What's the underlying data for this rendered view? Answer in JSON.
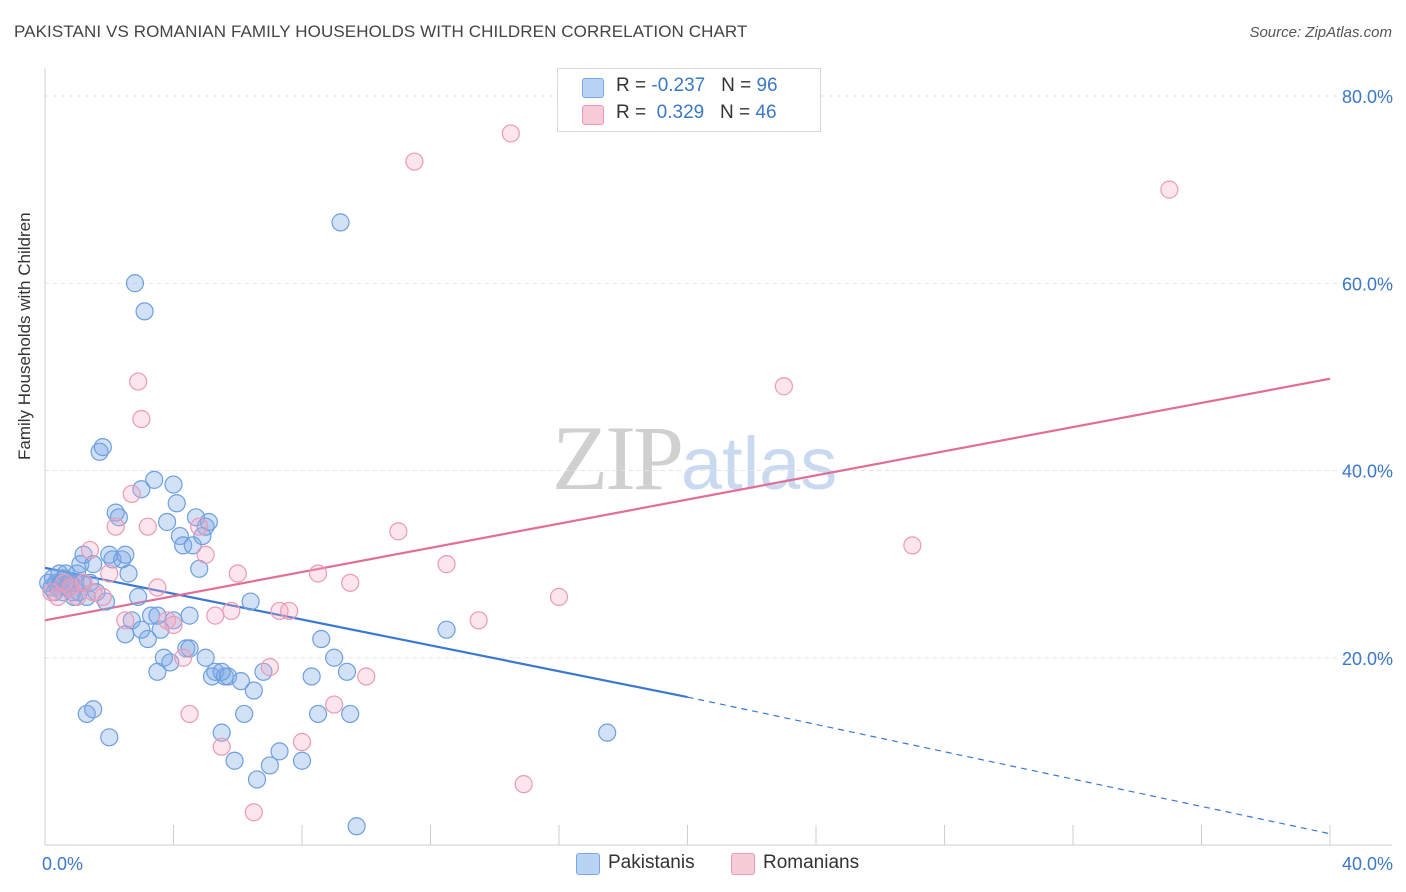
{
  "title": "PAKISTANI VS ROMANIAN FAMILY HOUSEHOLDS WITH CHILDREN CORRELATION CHART",
  "source": "Source: ZipAtlas.com",
  "watermark": {
    "zip": "ZIP",
    "atlas": "atlas"
  },
  "legend_stats": [
    {
      "r_label": "R = ",
      "r_value": "-0.237",
      "n_label": "N = ",
      "n_value": "96"
    },
    {
      "r_label": "R = ",
      "r_value": " 0.329",
      "n_label": "N = ",
      "n_value": "46"
    }
  ],
  "chart_data": {
    "type": "scatter",
    "title": "PAKISTANI VS ROMANIAN FAMILY HOUSEHOLDS WITH CHILDREN CORRELATION CHART",
    "xlabel": "",
    "ylabel": "Family Households with Children",
    "xlim": [
      0,
      40
    ],
    "ylim": [
      0,
      80
    ],
    "x_tick_labels": [
      "0.0%",
      "40.0%"
    ],
    "y_ticks": [
      20,
      40,
      60,
      80
    ],
    "y_tick_labels": [
      "20.0%",
      "40.0%",
      "60.0%",
      "80.0%"
    ],
    "grid": true,
    "legend_position": "bottom",
    "colors": {
      "pakistanis": "#5b95db",
      "romanians": "#e98aaa",
      "pak_line": "#3a78d2",
      "rom_line": "#e26d97",
      "tick_label": "#3b78c6"
    },
    "series": [
      {
        "name": "Pakistanis",
        "x": [
          0.1,
          0.2,
          0.25,
          0.3,
          0.35,
          0.4,
          0.45,
          0.5,
          0.55,
          0.6,
          0.65,
          0.7,
          0.75,
          0.8,
          0.85,
          0.9,
          0.95,
          1.0,
          1.05,
          1.1,
          1.15,
          1.2,
          1.3,
          1.4,
          1.5,
          1.6,
          1.7,
          1.8,
          1.9,
          2.0,
          2.1,
          2.2,
          2.3,
          2.4,
          2.5,
          2.6,
          2.7,
          2.8,
          2.9,
          3.0,
          3.1,
          3.2,
          3.3,
          3.4,
          3.5,
          3.6,
          3.7,
          3.8,
          3.9,
          4.0,
          4.1,
          4.2,
          4.3,
          4.4,
          4.5,
          4.6,
          4.7,
          4.8,
          4.9,
          5.0,
          5.1,
          5.2,
          5.3,
          5.5,
          5.6,
          5.7,
          5.9,
          6.1,
          6.2,
          6.4,
          6.6,
          6.8,
          7.0,
          7.3,
          8.0,
          8.3,
          8.5,
          8.6,
          9.0,
          9.2,
          9.4,
          9.5,
          9.7,
          12.5,
          17.5,
          1.3,
          1.5,
          2.0,
          2.5,
          3.0,
          3.5,
          4.0,
          4.5,
          5.0,
          5.5,
          6.5
        ],
        "y": [
          28,
          27.5,
          28.5,
          27,
          28,
          27.5,
          29,
          28,
          27,
          28.5,
          29,
          27.5,
          28,
          28,
          27,
          26.5,
          28,
          29,
          27,
          30,
          28,
          31,
          26.5,
          28,
          30,
          27,
          42,
          42.5,
          26,
          31,
          30.5,
          35.5,
          35,
          30.5,
          31,
          29,
          24,
          60,
          26.5,
          38,
          57,
          22,
          24.5,
          39,
          18.5,
          23,
          20,
          34.5,
          19.5,
          38.5,
          36.5,
          33,
          32,
          21,
          24.5,
          32,
          35,
          29.5,
          33,
          34,
          34.5,
          18,
          18.5,
          12,
          18,
          18,
          9,
          17.5,
          14,
          26,
          7,
          18.5,
          8.5,
          10,
          9,
          18,
          14,
          22,
          20,
          66.5,
          18.5,
          14,
          2,
          23,
          12,
          14,
          14.5,
          11.5,
          22.5,
          23,
          24.5,
          24,
          21,
          20,
          18.5,
          16.5
        ]
      },
      {
        "name": "Romanians",
        "x": [
          0.2,
          0.4,
          0.6,
          0.8,
          1.0,
          1.2,
          1.4,
          1.5,
          1.8,
          2.0,
          2.2,
          2.5,
          2.7,
          2.9,
          3.0,
          3.2,
          3.5,
          3.8,
          4.0,
          4.3,
          4.5,
          4.8,
          5.0,
          5.3,
          5.5,
          5.8,
          6.0,
          6.5,
          7.0,
          7.3,
          7.6,
          8.0,
          8.5,
          9.0,
          9.5,
          10.0,
          11.0,
          11.5,
          12.5,
          13.5,
          14.5,
          14.9,
          16.0,
          23.0,
          27.0,
          35.0
        ],
        "y": [
          27,
          26.5,
          28,
          27.5,
          26.5,
          28,
          31.5,
          27,
          26.5,
          29,
          34,
          24,
          37.5,
          49.5,
          45.5,
          34,
          27.5,
          24,
          23.5,
          20,
          14,
          34,
          31,
          24.5,
          10.5,
          25,
          29,
          3.5,
          19,
          25,
          25,
          11,
          29,
          15,
          28,
          18,
          33.5,
          73,
          30,
          24,
          76,
          6.5,
          26.5,
          49,
          32,
          70
        ]
      }
    ],
    "trendlines": [
      {
        "series": "Pakistanis",
        "x": [
          0,
          20
        ],
        "y": [
          29.6,
          15.8
        ],
        "dashed_extension_x": [
          20,
          40
        ],
        "dashed_extension_y": [
          15.8,
          1.2
        ]
      },
      {
        "series": "Romanians",
        "x": [
          0,
          40
        ],
        "y": [
          24.0,
          49.8
        ]
      }
    ]
  },
  "bottom_legend": [
    {
      "label": "Pakistanis"
    },
    {
      "label": "Romanians"
    }
  ]
}
